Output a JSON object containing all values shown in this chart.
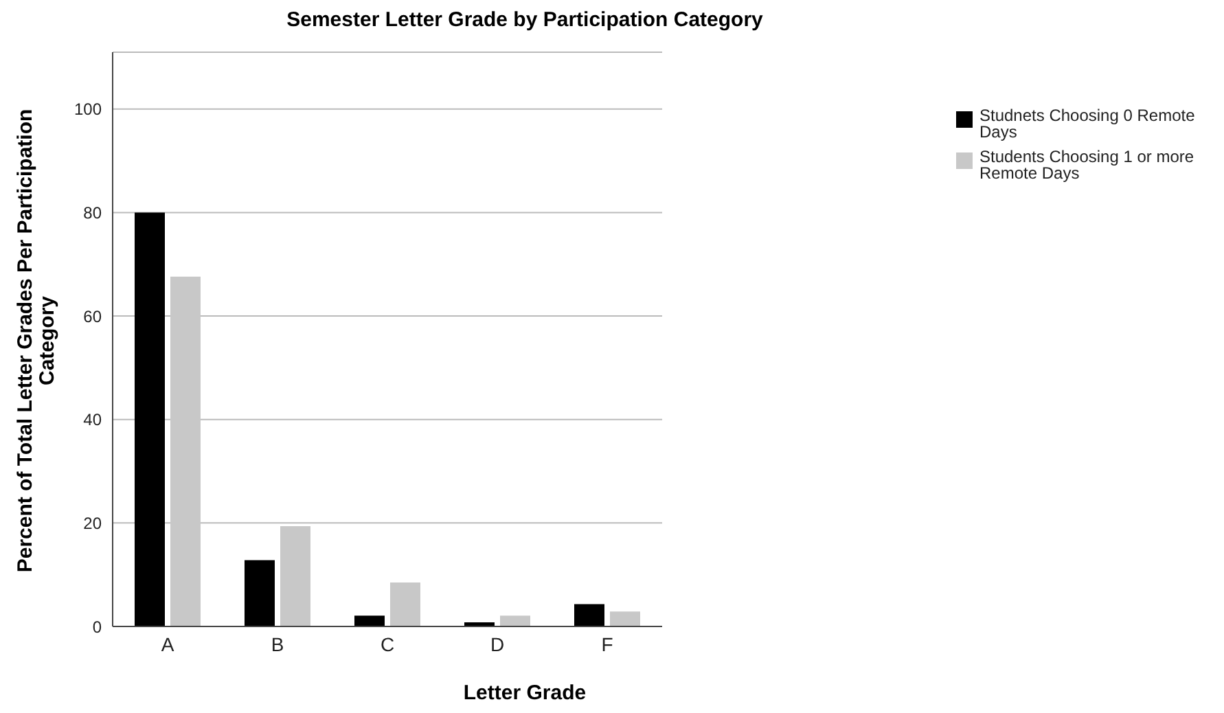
{
  "chart_data": {
    "type": "bar",
    "title": "Semester Letter Grade by Participation Category",
    "xlabel": "Letter Grade",
    "ylabel": "Percent of Total Letter Grades Per Participation Category",
    "categories": [
      "A",
      "B",
      "C",
      "D",
      "F"
    ],
    "series": [
      {
        "name": "Studnets Choosing 0 Remote Days",
        "color": "#000000",
        "values": [
          80,
          12.8,
          2.1,
          0.8,
          4.3
        ]
      },
      {
        "name": "Students Choosing 1 or more Remote Days",
        "color": "#c8c8c8",
        "values": [
          67.6,
          19.4,
          8.5,
          2.1,
          2.9
        ]
      }
    ],
    "ylim": [
      0,
      111
    ],
    "yticks": [
      0,
      20,
      40,
      60,
      80,
      100
    ],
    "grid": "y",
    "legend": "top right"
  }
}
